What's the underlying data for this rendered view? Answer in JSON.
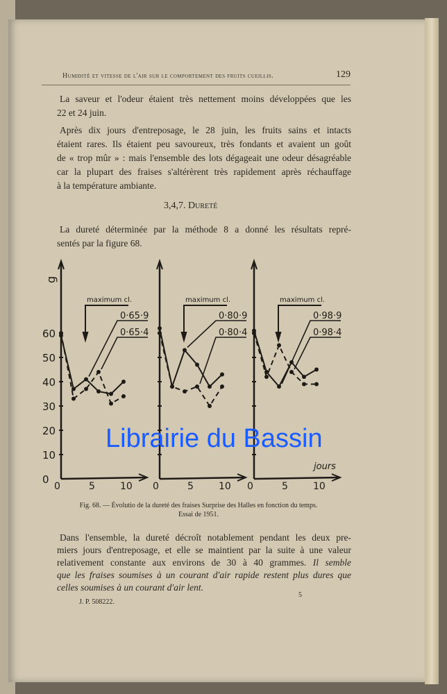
{
  "header": {
    "running_title": "Humidité et vitesse de l'air sur le comportement des fruits cueillis.",
    "page_number": "129"
  },
  "paragraphs": [
    [
      "La saveur et l'odeur étaient très nettement moins développées que les",
      "22 et 24 juin."
    ],
    [
      "Après dix jours d'entreposage, le 28 juin, les fruits sains et intacts",
      "étaient rares. Ils étaient peu savoureux, très fondants et avaient un goût",
      "de « trop mûr » : mais l'ensemble des lots dégageait une odeur désagréable",
      "car la plupart des fraises s'altérèrent très rapidement après réchauffage",
      "à la température ambiante."
    ]
  ],
  "section": {
    "number": "3,4,7.",
    "title": "Dureté"
  },
  "intro": [
    "La dureté déterminée par la méthode 8 a donné les résultats repré-",
    "sentés par la figure 68."
  ],
  "chart_data": {
    "type": "line",
    "ylabel": "g",
    "xlabel": "jours",
    "ylim": [
      0,
      60
    ],
    "yticks": [
      "0",
      "10",
      "20",
      "30",
      "40",
      "50",
      "60"
    ],
    "xticks": [
      "0",
      "5",
      "10"
    ],
    "annotation": "maximum cl.",
    "panels": [
      {
        "x": [
          0,
          2,
          4,
          6,
          8,
          10
        ],
        "series": [
          {
            "name": "0·65·9",
            "style": "solid",
            "values": [
              59,
              37,
              41,
              36,
              35,
              40
            ]
          },
          {
            "name": "0·65·4",
            "style": "dashed",
            "values": [
              60,
              33,
              37,
              44,
              31,
              34
            ]
          }
        ]
      },
      {
        "x": [
          0,
          2,
          4,
          6,
          8,
          10
        ],
        "series": [
          {
            "name": "0·80·9",
            "style": "solid",
            "values": [
              62,
              38,
              53,
              47,
              38,
              43
            ]
          },
          {
            "name": "0·80·4",
            "style": "dashed",
            "values": [
              60,
              38,
              36,
              38,
              30,
              38
            ]
          }
        ]
      },
      {
        "x": [
          0,
          2,
          4,
          6,
          8,
          10
        ],
        "series": [
          {
            "name": "0·98·9",
            "style": "solid",
            "values": [
              61,
              44,
              38,
              48,
              42,
              45
            ]
          },
          {
            "name": "0·98·4",
            "style": "dashed",
            "values": [
              60,
              42,
              55,
              44,
              39,
              39
            ]
          }
        ]
      }
    ]
  },
  "caption": [
    "Fig. 68. — Évolutio  de la dureté des fraises Surprise des Halles en fonction du temps.",
    "Essai de 1951."
  ],
  "conclusion": [
    "Dans l'ensemble, la dureté décroît notablement pendant les deux pre-",
    "miers jours d'entreposage, et elle se maintient par la suite à une valeur",
    "relativement constante aux environs de 30 à 40 grammes. ",
    "Il semble",
    "que les fraises soumises à un courant d'air rapide restent plus dures que",
    "celles soumises à un courant d'air lent."
  ],
  "footer": {
    "printer": "J. P. 508222.",
    "signature": "5"
  },
  "watermark": "Librairie du Bassin",
  "colors": {
    "paper": "#d3c9b3",
    "ink": "#2b2620",
    "watermark": "#1b5cff"
  }
}
